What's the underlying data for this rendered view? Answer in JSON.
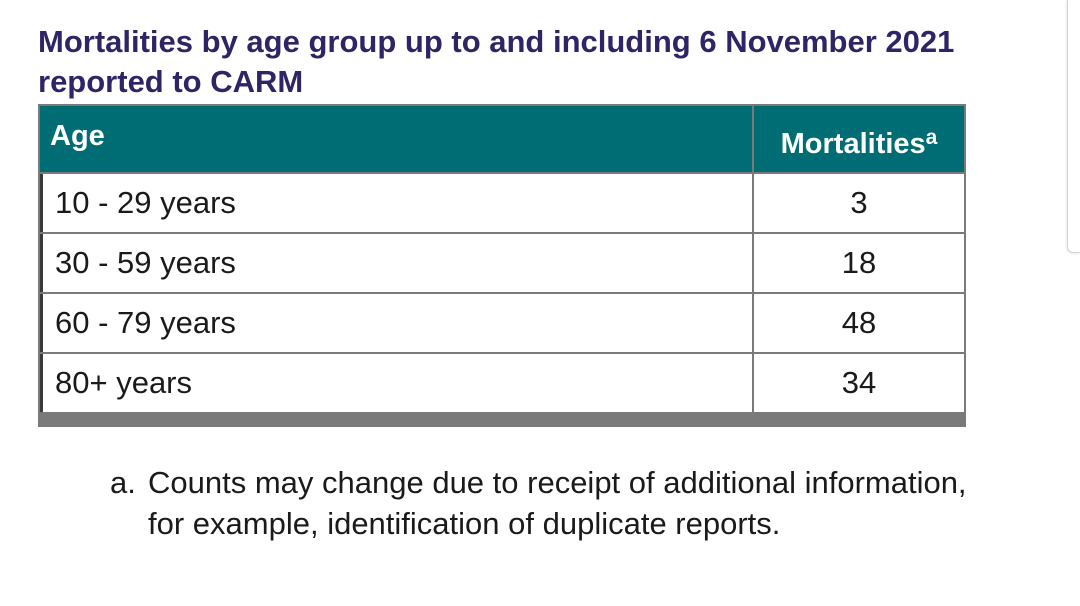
{
  "title": "Mortalities by age group up to and including 6 November 2021 reported to CARM",
  "table": {
    "headers": {
      "age": "Age",
      "mortalities": "Mortalities",
      "mortalities_superscript": "a"
    },
    "rows": [
      {
        "age": "10 - 29 years",
        "mortalities": "3"
      },
      {
        "age": "30 - 59 years",
        "mortalities": "18"
      },
      {
        "age": "60 - 79 years",
        "mortalities": "48"
      },
      {
        "age": "80+ years",
        "mortalities": "34"
      }
    ]
  },
  "footnote": {
    "marker": "a.",
    "text": "Counts may change due to receipt of additional information, for example, identification of duplicate reports."
  },
  "colors": {
    "title": "#2e2566",
    "header_bg": "#006c73",
    "header_text": "#ffffff",
    "border": "#7a7a7a"
  }
}
